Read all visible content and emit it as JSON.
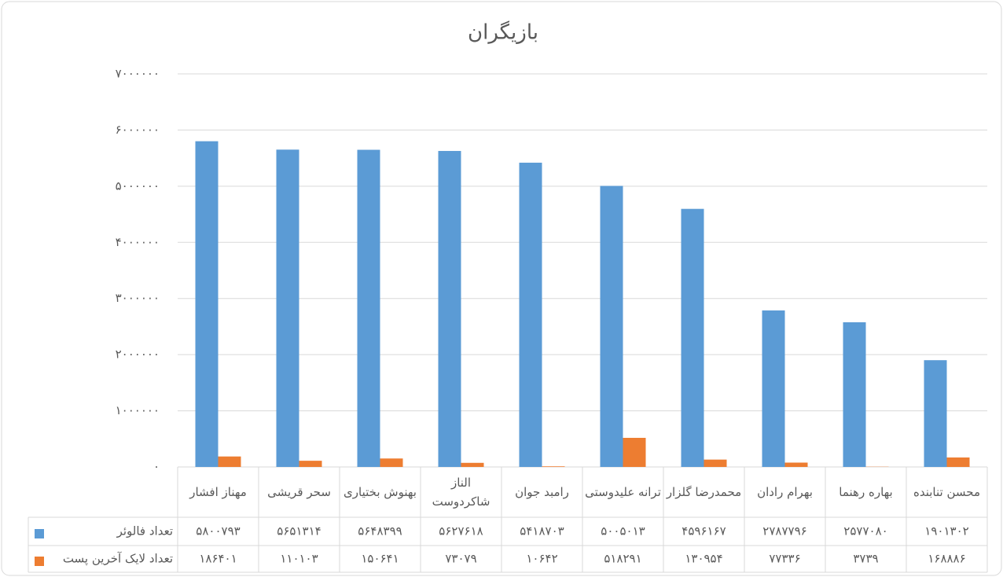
{
  "chart_data": {
    "type": "bar",
    "title": "بازیگران",
    "categories": [
      "مهناز افشار",
      "سحر قریشی",
      "بهنوش بختیاری",
      "الناز شاکردوست",
      "رامبد جوان",
      "ترانه علیدوستی",
      "محمدرضا گلزار",
      "بهرام رادان",
      "بهاره رهنما",
      "محسن تنابنده"
    ],
    "series": [
      {
        "name": "تعداد فالوئر",
        "color": "#5b9bd5",
        "values": [
          5800793,
          5651314,
          5648399,
          5627618,
          5418703,
          5005013,
          4596167,
          2787796,
          2577080,
          1901302
        ],
        "value_labels": [
          "۵۸۰۰۷۹۳",
          "۵۶۵۱۳۱۴",
          "۵۶۴۸۳۹۹",
          "۵۶۲۷۶۱۸",
          "۵۴۱۸۷۰۳",
          "۵۰۰۵۰۱۳",
          "۴۵۹۶۱۶۷",
          "۲۷۸۷۷۹۶",
          "۲۵۷۷۰۸۰",
          "۱۹۰۱۳۰۲"
        ]
      },
      {
        "name": "تعداد لایک آخرین پست",
        "color": "#ed7d31",
        "values": [
          186401,
          110103,
          150641,
          73079,
          10642,
          518291,
          130954,
          77336,
          3739,
          168886
        ],
        "value_labels": [
          "۱۸۶۴۰۱",
          "۱۱۰۱۰۳",
          "۱۵۰۶۴۱",
          "۷۳۰۷۹",
          "۱۰۶۴۲",
          "۵۱۸۲۹۱",
          "۱۳۰۹۵۴",
          "۷۷۳۳۶",
          "۳۷۳۹",
          "۱۶۸۸۸۶"
        ]
      }
    ],
    "ylim": [
      0,
      7000000
    ],
    "yticks": [
      {
        "value": 0,
        "label": "۰"
      },
      {
        "value": 1000000,
        "label": "۱۰۰۰۰۰۰"
      },
      {
        "value": 2000000,
        "label": "۲۰۰۰۰۰۰"
      },
      {
        "value": 3000000,
        "label": "۳۰۰۰۰۰۰"
      },
      {
        "value": 4000000,
        "label": "۴۰۰۰۰۰۰"
      },
      {
        "value": 5000000,
        "label": "۵۰۰۰۰۰۰"
      },
      {
        "value": 6000000,
        "label": "۶۰۰۰۰۰۰"
      },
      {
        "value": 7000000,
        "label": "۷۰۰۰۰۰۰"
      }
    ],
    "grid": true
  }
}
